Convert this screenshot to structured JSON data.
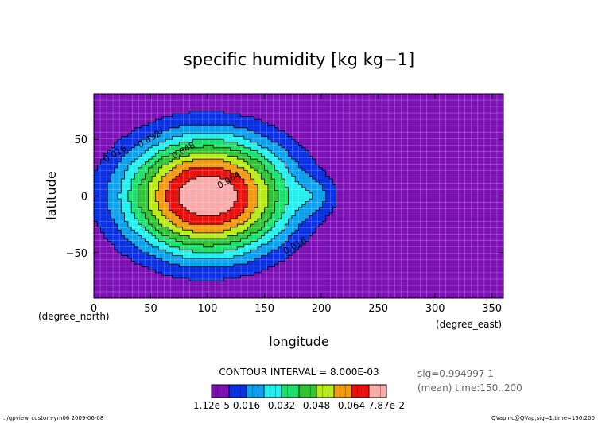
{
  "chart_data": {
    "type": "heatmap",
    "title": "specific humidity [kg kg−1]",
    "xlabel": "longitude",
    "ylabel": "latitude",
    "x_unit_label": "(degree_east)",
    "y_unit_label": "(degree_north)",
    "xlim": [
      0,
      360
    ],
    "ylim": [
      -90,
      90
    ],
    "x_ticks": [
      0,
      50,
      100,
      150,
      200,
      250,
      300,
      350
    ],
    "y_ticks": [
      -50,
      0,
      50
    ],
    "x_tick_labels": [
      "0",
      "50",
      "100",
      "150",
      "200",
      "250",
      "300",
      "350"
    ],
    "y_tick_labels": [
      "−50",
      "0",
      "50"
    ],
    "grid": true,
    "contour_interval_text": "CONTOUR INTERVAL = 8.000E-03",
    "contour_interval": 0.008,
    "field_peak": {
      "lon": 100,
      "lat": 0,
      "value": 0.0787
    },
    "contour_labels": [
      {
        "text": "0.016",
        "lon": 20,
        "lat": 35
      },
      {
        "text": "0.032",
        "lon": 50,
        "lat": 48
      },
      {
        "text": "0.048",
        "lon": 80,
        "lat": 38
      },
      {
        "text": "0.064",
        "lon": 120,
        "lat": 12
      },
      {
        "text": "0.016",
        "lon": 178,
        "lat": -46
      }
    ],
    "levels": [
      {
        "lower": 1.12e-05,
        "upper": 0.008,
        "color": "#7d10b6"
      },
      {
        "lower": 0.008,
        "upper": 0.016,
        "color": "#0a31e6"
      },
      {
        "lower": 0.016,
        "upper": 0.024,
        "color": "#0ba1f0"
      },
      {
        "lower": 0.024,
        "upper": 0.032,
        "color": "#22f0ee"
      },
      {
        "lower": 0.032,
        "upper": 0.04,
        "color": "#19e26d"
      },
      {
        "lower": 0.04,
        "upper": 0.048,
        "color": "#30c534"
      },
      {
        "lower": 0.048,
        "upper": 0.056,
        "color": "#b8ed14"
      },
      {
        "lower": 0.056,
        "upper": 0.064,
        "color": "#f39a0f"
      },
      {
        "lower": 0.064,
        "upper": 0.072,
        "color": "#ee0f0b"
      },
      {
        "lower": 0.072,
        "upper": 0.0787,
        "color": "#fbaaaa"
      }
    ],
    "colorbar_labels": [
      "1.12e-5",
      "0.016",
      "0.032",
      "0.048",
      "0.064",
      "7.87e-2"
    ],
    "colorbar_segments": 10
  },
  "meta_text": {
    "sig": "sig=0.994997 1",
    "mean": "(mean) time:150..200",
    "footer_left": "../gpview_custom-ym06  2009-06-08",
    "footer_right": "QVap.nc@QVap,sig=1,time=150:200"
  }
}
